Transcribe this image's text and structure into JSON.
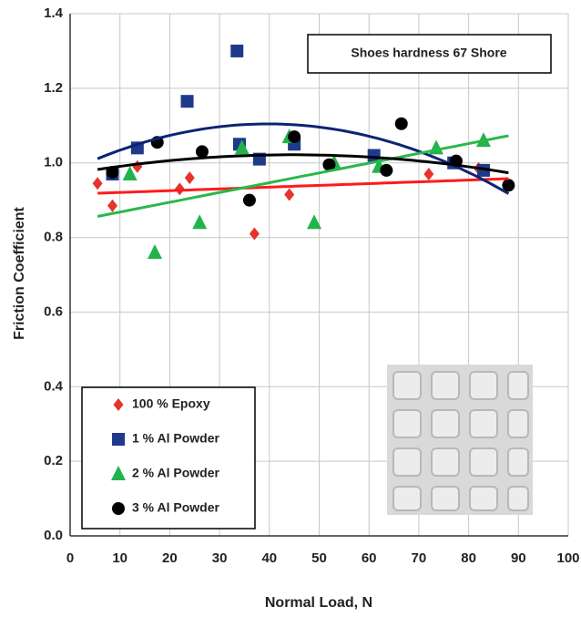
{
  "chart_data": {
    "type": "scatter",
    "annotation": "Shoes hardness 67 Shore",
    "x_label": "Normal Load, N",
    "y_label": "Friction Coefficient",
    "xlim": [
      0,
      100
    ],
    "xticks": [
      0,
      10,
      20,
      30,
      40,
      50,
      60,
      70,
      80,
      90,
      100
    ],
    "ylim": [
      0,
      1.4
    ],
    "yticks": [
      {
        "value": 0,
        "label": "0.0"
      },
      0.2,
      0.4,
      0.6,
      0.8,
      {
        "value": 1,
        "label": "1.0"
      },
      1.2,
      1.4
    ],
    "grid": true,
    "legend": "lower left",
    "series": [
      {
        "name": "100 % Epoxy",
        "color": "#e5342c",
        "line_color": "#ff1a1a",
        "marker": "diamond",
        "trendline": "linear",
        "x": [
          5.5,
          8.5,
          13.5,
          22,
          24,
          37,
          44,
          72,
          82
        ],
        "values": [
          0.945,
          0.885,
          0.99,
          0.93,
          0.96,
          0.81,
          0.915,
          0.97,
          0.985
        ]
      },
      {
        "name": "1 % Al Powder",
        "color": "#1f3a8a",
        "line_color": "#0d2475",
        "marker": "square",
        "trendline": "poly2",
        "x": [
          8.5,
          13.5,
          23.5,
          33.5,
          34,
          38,
          45,
          61,
          77,
          83
        ],
        "values": [
          0.97,
          1.04,
          1.165,
          1.3,
          1.05,
          1.01,
          1.05,
          1.02,
          1.0,
          0.98
        ]
      },
      {
        "name": "2 % Al Powder",
        "color": "#23b34c",
        "line_color": "#2ab84a",
        "marker": "triangle",
        "trendline": "linear",
        "x": [
          12,
          17,
          26,
          34.5,
          44,
          49,
          53,
          62,
          73.5,
          83
        ],
        "values": [
          0.97,
          0.76,
          0.84,
          1.04,
          1.07,
          0.84,
          1.0,
          0.99,
          1.04,
          1.06
        ]
      },
      {
        "name": "3 % Al Powder",
        "color": "#000000",
        "line_color": "#000000",
        "marker": "circle",
        "trendline": "poly2",
        "x": [
          8.5,
          17.5,
          26.5,
          36,
          45,
          52,
          63.5,
          66.5,
          77.5,
          88
        ],
        "values": [
          0.975,
          1.055,
          1.03,
          0.9,
          1.07,
          0.995,
          0.98,
          1.105,
          1.005,
          0.94
        ]
      }
    ]
  }
}
